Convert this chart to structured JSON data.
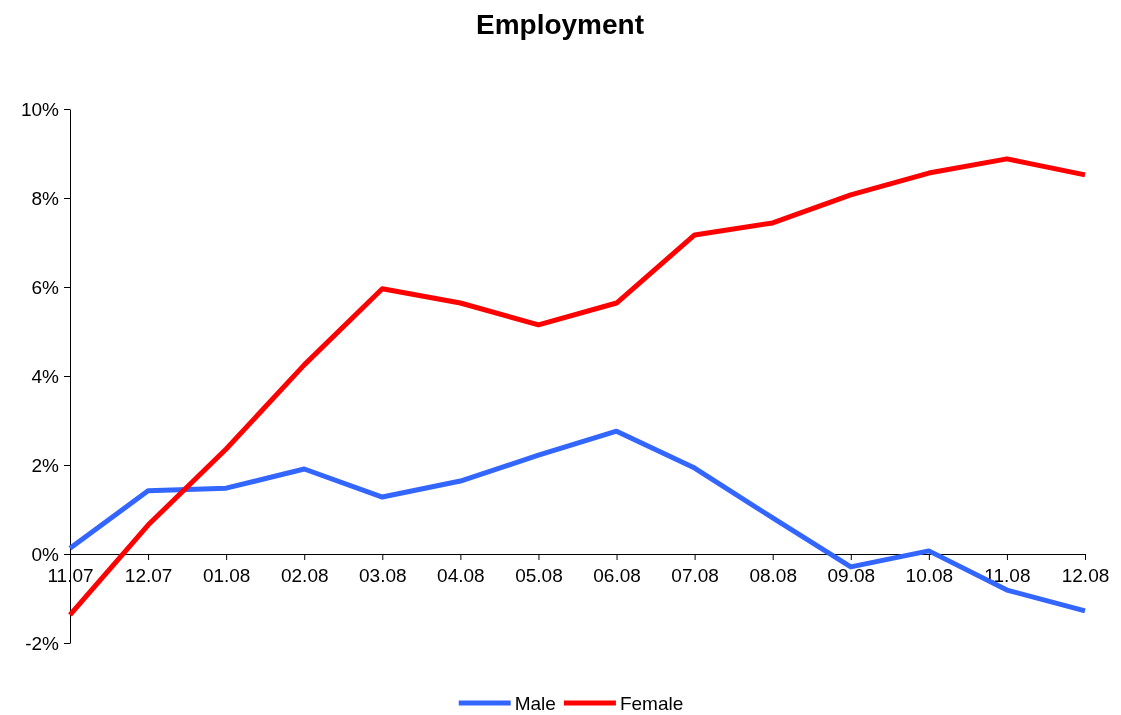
{
  "chart_data": {
    "type": "line",
    "title": "Employment",
    "categories": [
      "11.07",
      "12.07",
      "01.08",
      "02.08",
      "03.08",
      "04.08",
      "05.08",
      "06.08",
      "07.08",
      "08.08",
      "09.08",
      "10.08",
      "11.08",
      "12.08"
    ],
    "series": [
      {
        "name": "Male",
        "color": "#3366ff",
        "values": [
          0.13,
          1.42,
          1.48,
          1.91,
          1.28,
          1.64,
          2.22,
          2.76,
          1.93,
          0.81,
          -0.29,
          0.07,
          -0.81,
          -1.28
        ]
      },
      {
        "name": "Female",
        "color": "#ff0000",
        "values": [
          -1.37,
          0.65,
          2.36,
          4.25,
          5.96,
          5.64,
          5.15,
          5.64,
          7.17,
          7.44,
          8.07,
          8.56,
          8.88,
          8.52
        ]
      }
    ],
    "ylim": [
      -2,
      10
    ],
    "yticks": [
      {
        "value": -2,
        "label": "-2%"
      },
      {
        "value": 0,
        "label": "0%"
      },
      {
        "value": 2,
        "label": "2%"
      },
      {
        "value": 4,
        "label": "4%"
      },
      {
        "value": 6,
        "label": "6%"
      },
      {
        "value": 8,
        "label": "8%"
      },
      {
        "value": 10,
        "label": "10%"
      }
    ],
    "grid": false,
    "legend": "bottom",
    "marker": "none",
    "line_style": "solid"
  }
}
